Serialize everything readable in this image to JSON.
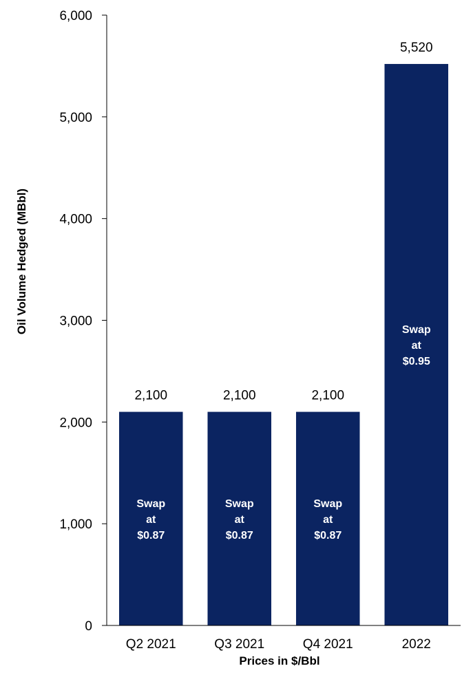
{
  "chart_data": {
    "type": "bar",
    "categories": [
      "Q2 2021",
      "Q3 2021",
      "Q4 2021",
      "2022"
    ],
    "values": [
      2100,
      2100,
      2100,
      5520
    ],
    "value_labels": [
      "2,100",
      "2,100",
      "2,100",
      "5,520"
    ],
    "inner_labels": [
      [
        "Swap",
        "at",
        "$0.87"
      ],
      [
        "Swap",
        "at",
        "$0.87"
      ],
      [
        "Swap",
        "at",
        "$0.87"
      ],
      [
        "Swap",
        "at",
        "$0.95"
      ]
    ],
    "xlabel": "Prices in $/Bbl",
    "ylabel": "Oil Volume Hedged (MBbl)",
    "ylim": [
      0,
      6000
    ],
    "yticks": [
      0,
      1000,
      2000,
      3000,
      4000,
      5000,
      6000
    ],
    "ytick_labels": [
      "0",
      "1,000",
      "2,000",
      "3,000",
      "4,000",
      "5,000",
      "6,000"
    ],
    "bar_color": "#0B2461",
    "grid": false,
    "legend": "none"
  }
}
